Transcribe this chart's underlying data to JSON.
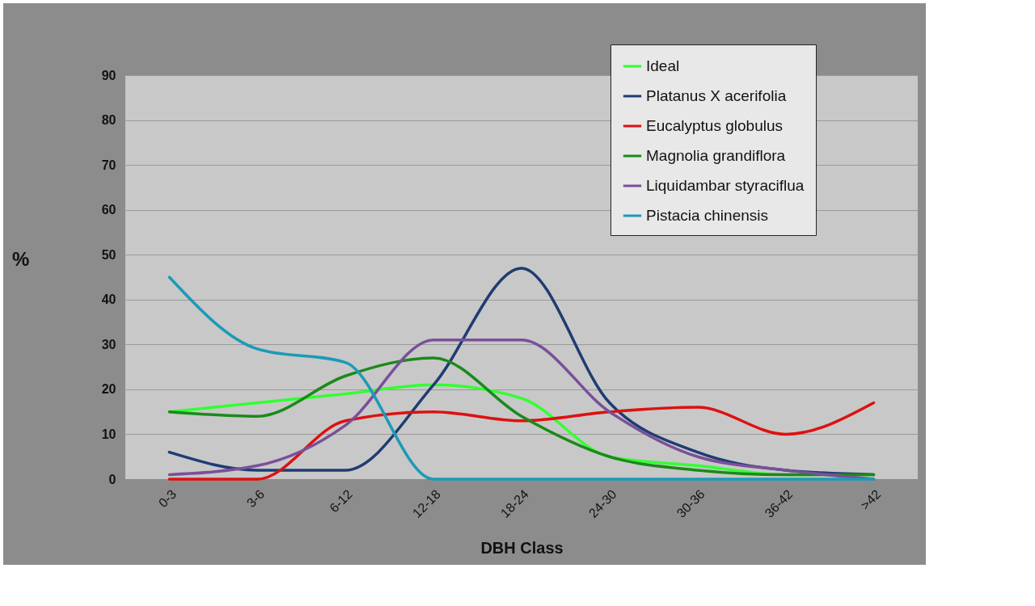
{
  "chart_data": {
    "type": "line",
    "xlabel": "DBH Class",
    "ylabel": "%",
    "categories": [
      "0-3",
      "3-6",
      "6-12",
      "12-18",
      "18-24",
      "24-30",
      "30-36",
      "36-42",
      ">42"
    ],
    "ylim": [
      0,
      90
    ],
    "yticks": [
      0,
      10,
      20,
      30,
      40,
      50,
      60,
      70,
      80,
      90
    ],
    "grid": "y",
    "legend": "top right",
    "marker": "none",
    "line_style": "solid",
    "series": [
      {
        "name": "Ideal",
        "color": "#33ff33",
        "values": [
          15,
          17,
          19,
          21,
          18,
          5,
          3,
          1,
          1
        ]
      },
      {
        "name": "Platanus X acerifolia",
        "color": "#1f3c73",
        "values": [
          6,
          2,
          2,
          21,
          47,
          17,
          6,
          2,
          1
        ]
      },
      {
        "name": "Eucalyptus globulus",
        "color": "#dd1111",
        "values": [
          0,
          0,
          13,
          15,
          13,
          15,
          16,
          10,
          17
        ]
      },
      {
        "name": "Magnolia grandiflora",
        "color": "#1a8a1a",
        "values": [
          15,
          14,
          23,
          27,
          14,
          5,
          2,
          1,
          1
        ]
      },
      {
        "name": "Liquidambar styraciflua",
        "color": "#7a4f9a",
        "values": [
          1,
          3,
          12,
          31,
          31,
          15,
          5,
          2,
          0
        ]
      },
      {
        "name": "Pistacia chinensis",
        "color": "#1b9ab8",
        "values": [
          45,
          29,
          26,
          0,
          0,
          0,
          0,
          0,
          0
        ]
      }
    ]
  }
}
